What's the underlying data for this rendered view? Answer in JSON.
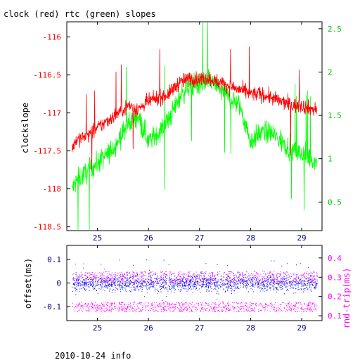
{
  "page_title": "clock (red) rtc (green) slopes",
  "footer": "2010-10-24 info",
  "colors": {
    "clock": "#ff0000",
    "rtc": "#00ff00",
    "offset": "#0000ff",
    "rndtrip": "#ff00ff",
    "axis": "#000000"
  },
  "chart_data": [
    {
      "type": "line",
      "title": "clock (red) rtc (green) slopes",
      "ylabel": "clockslope",
      "xlim": [
        24.4,
        29.4
      ],
      "ylim": [
        -118.55,
        -115.8
      ],
      "y2lim": [
        0.17,
        2.58
      ],
      "x_ticks": [
        "25",
        "26",
        "27",
        "28",
        "29"
      ],
      "y_ticks": [
        "-116",
        "-116.5",
        "-117",
        "-117.5",
        "-118",
        "-118.5"
      ],
      "y2_ticks": [
        "2.5",
        "2",
        "1.5",
        "1",
        "0.5"
      ],
      "grid": false,
      "series": [
        {
          "name": "clock",
          "axis": "left",
          "color": "#ff0000",
          "x": [
            24.5,
            24.6,
            24.8,
            25.0,
            25.2,
            25.4,
            25.6,
            25.8,
            26.0,
            26.2,
            26.4,
            26.6,
            26.8,
            27.0,
            27.2,
            27.4,
            27.6,
            27.8,
            28.0,
            28.2,
            28.4,
            28.6,
            28.8,
            29.0,
            29.2,
            29.3
          ],
          "y": [
            -117.45,
            -117.35,
            -117.3,
            -117.2,
            -117.1,
            -117.0,
            -116.9,
            -116.95,
            -116.85,
            -116.8,
            -116.75,
            -116.6,
            -116.55,
            -116.55,
            -116.55,
            -116.6,
            -116.65,
            -116.7,
            -116.75,
            -116.75,
            -116.8,
            -116.85,
            -116.9,
            -116.9,
            -116.95,
            -116.95
          ]
        },
        {
          "name": "rtc",
          "axis": "right",
          "color": "#00ff00",
          "x": [
            24.5,
            24.6,
            24.8,
            25.0,
            25.2,
            25.4,
            25.6,
            25.8,
            26.0,
            26.2,
            26.4,
            26.6,
            26.8,
            27.0,
            27.2,
            27.4,
            27.6,
            27.8,
            28.0,
            28.2,
            28.4,
            28.6,
            28.8,
            29.0,
            29.2,
            29.3
          ],
          "y": [
            0.65,
            0.75,
            0.85,
            0.95,
            1.05,
            1.2,
            1.4,
            1.5,
            1.2,
            1.3,
            1.45,
            1.7,
            1.85,
            1.85,
            1.9,
            1.8,
            1.7,
            1.6,
            1.2,
            1.3,
            1.3,
            1.2,
            1.1,
            1.05,
            1.0,
            0.95
          ]
        }
      ]
    },
    {
      "type": "scatter",
      "ylabel": "offset(ms)",
      "y2label": "rnd-trip(ms)",
      "xlim": [
        24.4,
        29.4
      ],
      "ylim": [
        -0.16,
        0.16
      ],
      "y2lim": [
        0.075,
        0.465
      ],
      "x_ticks": [
        "25",
        "26",
        "27",
        "28",
        "29"
      ],
      "y_ticks": [
        "0.1",
        "0",
        "-0.1"
      ],
      "y2_ticks": [
        "0.4",
        "0.3",
        "0.2",
        "0.1"
      ],
      "grid": false,
      "series": [
        {
          "name": "offset",
          "axis": "left",
          "color": "#0000ff",
          "x_range": [
            24.5,
            29.3
          ],
          "y_band": [
            -0.06,
            0.06
          ],
          "y_extent": [
            -0.1,
            0.1
          ]
        },
        {
          "name": "rnd-trip",
          "axis": "right",
          "color": "#ff00ff",
          "x_range": [
            24.5,
            29.3
          ],
          "y_band_low": [
            0.12,
            0.17
          ],
          "y_band_high": [
            0.27,
            0.33
          ]
        }
      ]
    }
  ]
}
